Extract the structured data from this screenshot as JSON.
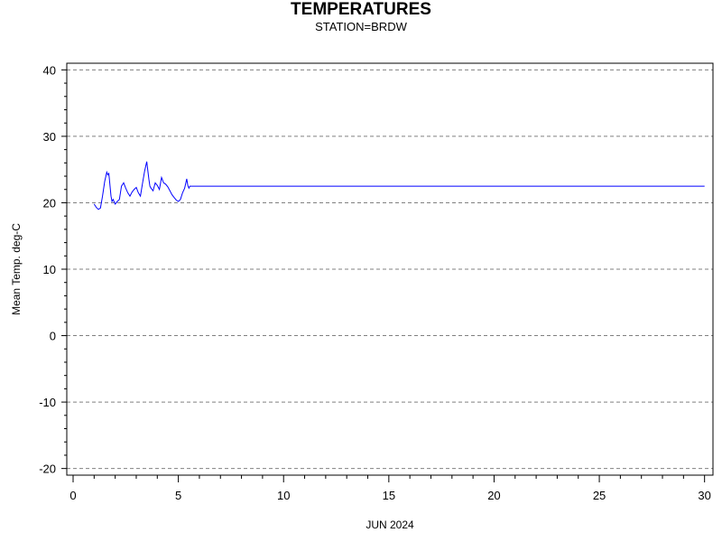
{
  "chart_data": {
    "type": "line",
    "title": "TEMPERATURES",
    "subtitle": "STATION=BRDW",
    "xlabel": "JUN 2024",
    "ylabel": "Mean Temp. deg-C",
    "xlim": [
      -0.3,
      30.4
    ],
    "ylim": [
      -21,
      41
    ],
    "x_ticks": [
      0,
      5,
      10,
      15,
      20,
      25,
      30
    ],
    "x_tick_labels": [
      "0",
      "5",
      "10",
      "15",
      "20",
      "25",
      "30"
    ],
    "y_ticks": [
      -20,
      -10,
      0,
      10,
      20,
      30,
      40
    ],
    "y_tick_labels": [
      "-20",
      "-10",
      "0",
      "10",
      "20",
      "30",
      "40"
    ],
    "grid": "horizontal-dashed",
    "line_color": "#0000ff",
    "series": [
      {
        "x": [
          1.0,
          1.1,
          1.2,
          1.3,
          1.4,
          1.5,
          1.6,
          1.65,
          1.7,
          1.8,
          1.85,
          1.9,
          2.0,
          2.1,
          2.2,
          2.3,
          2.4,
          2.5,
          2.6,
          2.7,
          2.8,
          2.9,
          3.0,
          3.1,
          3.2,
          3.3,
          3.4,
          3.5,
          3.6,
          3.65,
          3.7,
          3.8,
          3.9,
          4.0,
          4.1,
          4.2,
          4.3,
          4.4,
          4.5,
          4.6,
          4.7,
          4.8,
          4.9,
          5.0,
          5.1,
          5.2,
          5.3,
          5.4,
          5.45,
          5.5,
          5.55,
          5.6,
          6.0,
          10.0,
          20.0,
          30.0
        ],
        "y": [
          19.8,
          19.3,
          19.0,
          19.2,
          21.0,
          23.2,
          24.6,
          24.2,
          24.4,
          21.0,
          20.2,
          20.5,
          19.8,
          20.2,
          20.5,
          22.5,
          23.0,
          22.2,
          21.5,
          21.0,
          21.6,
          22.0,
          22.3,
          21.5,
          21.0,
          23.0,
          24.8,
          26.2,
          23.5,
          22.5,
          22.2,
          21.8,
          23.0,
          22.6,
          22.0,
          23.8,
          23.0,
          22.8,
          22.4,
          21.8,
          21.2,
          20.8,
          20.4,
          20.2,
          20.5,
          21.5,
          22.2,
          23.6,
          22.6,
          22.2,
          22.5,
          22.5,
          22.5,
          22.5,
          22.5,
          22.5
        ]
      }
    ]
  }
}
